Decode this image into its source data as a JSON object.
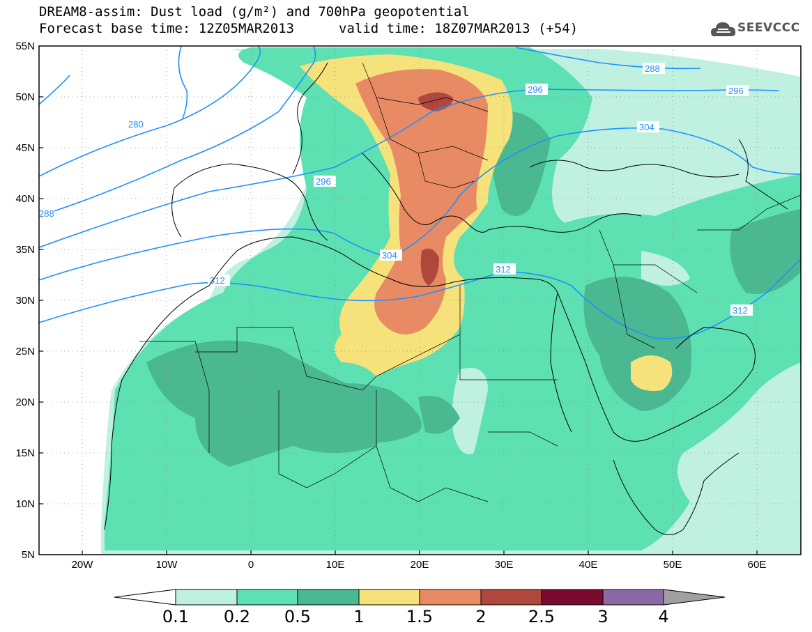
{
  "title": {
    "line1": "DREAM8-assim: Dust load (g/m²) and 700hPa geopotential",
    "line2_left": "Forecast base time: 12Z05MAR2013",
    "line2_right": "valid time: 18Z07MAR2013 (+54)"
  },
  "logo": {
    "text": "SEEVCCC",
    "icon": "cloud-logo-icon"
  },
  "map": {
    "latitude_labels": [
      "55N",
      "50N",
      "45N",
      "40N",
      "35N",
      "30N",
      "25N",
      "20N",
      "15N",
      "10N",
      "5N"
    ],
    "longitude_labels": [
      "20W",
      "10W",
      "0",
      "10E",
      "20E",
      "30E",
      "40E",
      "50E",
      "60E"
    ],
    "geopotential_contour_labels": [
      "280",
      "288",
      "296",
      "304",
      "312"
    ],
    "colors": {
      "frame": "#000000",
      "grid": "#888888",
      "contour": "#1e90ff",
      "coastline": "#000000"
    }
  },
  "colorbar": {
    "labels": [
      "0.1",
      "0.2",
      "0.5",
      "1",
      "1.5",
      "2",
      "2.5",
      "3",
      "4"
    ],
    "colors": [
      "#ffffff",
      "#bff0e0",
      "#5de0b2",
      "#4ab890",
      "#f6e27a",
      "#e88a63",
      "#b0473c",
      "#7a0a30",
      "#8a68a6",
      "#a0a0a0"
    ]
  }
}
